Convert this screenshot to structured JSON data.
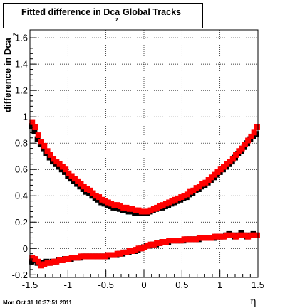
{
  "chart_data": {
    "type": "scatter",
    "title_main": "Fitted difference in Dca",
    "title_sub": "z",
    "title_tail": "Global Tracks",
    "ylabel_main": "difference in Dca",
    "ylabel_sub": "z",
    "xlabel": "η",
    "footer": "Mon Oct 31 10:37:51 2011",
    "xlim": [
      -1.5,
      1.5
    ],
    "ylim": [
      -0.22,
      1.66
    ],
    "grid": true,
    "x_ticks": [
      {
        "value": -1.5,
        "label": "-1.5"
      },
      {
        "value": -1.0,
        "label": "-1"
      },
      {
        "value": -0.5,
        "label": "-0.5"
      },
      {
        "value": 0.0,
        "label": "0"
      },
      {
        "value": 0.5,
        "label": "0.5"
      },
      {
        "value": 1.0,
        "label": "1"
      },
      {
        "value": 1.5,
        "label": "1.5"
      }
    ],
    "y_ticks": [
      {
        "value": -0.2,
        "label": "-0.2"
      },
      {
        "value": 0.0,
        "label": "0"
      },
      {
        "value": 0.2,
        "label": "0.2"
      },
      {
        "value": 0.4,
        "label": "0.4"
      },
      {
        "value": 0.6,
        "label": "0.6"
      },
      {
        "value": 0.8,
        "label": "0.8"
      },
      {
        "value": 1.0,
        "label": "1"
      },
      {
        "value": 1.2,
        "label": "1.2"
      },
      {
        "value": 1.4,
        "label": "1.4"
      },
      {
        "value": 1.6,
        "label": "1.6"
      }
    ],
    "series": [
      {
        "color": "#000000",
        "curves": [
          {
            "x": [
              -1.48,
              -1.44,
              -1.4,
              -1.36,
              -1.32,
              -1.28,
              -1.24,
              -1.2,
              -1.16,
              -1.12,
              -1.08,
              -1.04,
              -1.0,
              -0.96,
              -0.92,
              -0.88,
              -0.84,
              -0.8,
              -0.76,
              -0.72,
              -0.68,
              -0.64,
              -0.6,
              -0.56,
              -0.52,
              -0.48,
              -0.44,
              -0.4,
              -0.36,
              -0.32,
              -0.28,
              -0.24,
              -0.2,
              -0.16,
              -0.12,
              -0.08,
              -0.04,
              0.0,
              0.04,
              0.08,
              0.12,
              0.16,
              0.2,
              0.24,
              0.28,
              0.32,
              0.36,
              0.4,
              0.44,
              0.48,
              0.52,
              0.56,
              0.6,
              0.64,
              0.68,
              0.72,
              0.76,
              0.8,
              0.84,
              0.88,
              0.92,
              0.96,
              1.0,
              1.04,
              1.08,
              1.12,
              1.16,
              1.2,
              1.24,
              1.28,
              1.32,
              1.36,
              1.4,
              1.44,
              1.48
            ],
            "y": [
              0.93,
              0.89,
              0.83,
              0.79,
              0.76,
              0.72,
              0.69,
              0.66,
              0.64,
              0.62,
              0.6,
              0.58,
              0.55,
              0.53,
              0.51,
              0.49,
              0.47,
              0.45,
              0.43,
              0.42,
              0.4,
              0.38,
              0.37,
              0.35,
              0.34,
              0.33,
              0.32,
              0.31,
              0.31,
              0.3,
              0.29,
              0.29,
              0.28,
              0.28,
              0.27,
              0.27,
              0.27,
              0.27,
              0.27,
              0.28,
              0.29,
              0.3,
              0.31,
              0.31,
              0.32,
              0.33,
              0.34,
              0.35,
              0.36,
              0.37,
              0.38,
              0.39,
              0.41,
              0.42,
              0.44,
              0.45,
              0.47,
              0.48,
              0.5,
              0.52,
              0.54,
              0.56,
              0.58,
              0.6,
              0.62,
              0.64,
              0.66,
              0.69,
              0.72,
              0.74,
              0.77,
              0.8,
              0.83,
              0.85,
              0.87
            ]
          },
          {
            "x": [
              -1.48,
              -1.44,
              -1.4,
              -1.36,
              -1.32,
              -1.28,
              -1.24,
              -1.2,
              -1.16,
              -1.12,
              -1.08,
              -1.04,
              -1.0,
              -0.96,
              -0.92,
              -0.88,
              -0.84,
              -0.8,
              -0.76,
              -0.72,
              -0.68,
              -0.64,
              -0.6,
              -0.56,
              -0.52,
              -0.48,
              -0.44,
              -0.4,
              -0.36,
              -0.32,
              -0.28,
              -0.24,
              -0.2,
              -0.16,
              -0.12,
              -0.08,
              -0.04,
              0.0,
              0.04,
              0.08,
              0.12,
              0.16,
              0.2,
              0.24,
              0.28,
              0.32,
              0.36,
              0.4,
              0.44,
              0.48,
              0.52,
              0.56,
              0.6,
              0.64,
              0.68,
              0.72,
              0.76,
              0.8,
              0.84,
              0.88,
              0.92,
              0.96,
              1.0,
              1.04,
              1.08,
              1.12,
              1.16,
              1.2,
              1.24,
              1.28,
              1.32,
              1.36,
              1.4,
              1.44,
              1.48
            ],
            "y": [
              -0.1,
              -0.09,
              -0.11,
              -0.12,
              -0.11,
              -0.1,
              -0.11,
              -0.1,
              -0.1,
              -0.09,
              -0.09,
              -0.08,
              -0.08,
              -0.08,
              -0.07,
              -0.07,
              -0.07,
              -0.06,
              -0.06,
              -0.06,
              -0.06,
              -0.06,
              -0.06,
              -0.06,
              -0.06,
              -0.06,
              -0.05,
              -0.05,
              -0.05,
              -0.04,
              -0.04,
              -0.03,
              -0.03,
              -0.02,
              -0.02,
              -0.01,
              0.0,
              0.01,
              0.02,
              0.02,
              0.03,
              0.03,
              0.04,
              0.05,
              0.05,
              0.05,
              0.06,
              0.06,
              0.06,
              0.06,
              0.06,
              0.07,
              0.07,
              0.07,
              0.07,
              0.07,
              0.08,
              0.08,
              0.08,
              0.08,
              0.08,
              0.09,
              0.09,
              0.09,
              0.1,
              0.11,
              0.1,
              0.09,
              0.1,
              0.12,
              0.1,
              0.09,
              0.1,
              0.11,
              0.1
            ]
          }
        ]
      },
      {
        "color": "#ff0000",
        "curves": [
          {
            "x": [
              -1.47,
              -1.43,
              -1.39,
              -1.35,
              -1.31,
              -1.27,
              -1.23,
              -1.19,
              -1.15,
              -1.11,
              -1.07,
              -1.03,
              -0.99,
              -0.95,
              -0.91,
              -0.87,
              -0.83,
              -0.79,
              -0.75,
              -0.71,
              -0.67,
              -0.63,
              -0.59,
              -0.55,
              -0.51,
              -0.47,
              -0.43,
              -0.39,
              -0.35,
              -0.31,
              -0.27,
              -0.23,
              -0.19,
              -0.15,
              -0.11,
              -0.07,
              -0.03,
              0.01,
              0.05,
              0.09,
              0.13,
              0.17,
              0.21,
              0.25,
              0.29,
              0.33,
              0.37,
              0.41,
              0.45,
              0.49,
              0.53,
              0.57,
              0.61,
              0.65,
              0.69,
              0.73,
              0.77,
              0.81,
              0.85,
              0.89,
              0.93,
              0.97,
              1.01,
              1.05,
              1.09,
              1.13,
              1.17,
              1.21,
              1.25,
              1.29,
              1.33,
              1.37,
              1.41,
              1.45,
              1.49
            ],
            "y": [
              0.96,
              0.92,
              0.86,
              0.81,
              0.78,
              0.74,
              0.71,
              0.68,
              0.66,
              0.64,
              0.62,
              0.6,
              0.57,
              0.55,
              0.53,
              0.51,
              0.49,
              0.47,
              0.45,
              0.44,
              0.42,
              0.4,
              0.39,
              0.37,
              0.36,
              0.35,
              0.34,
              0.33,
              0.33,
              0.32,
              0.31,
              0.31,
              0.3,
              0.3,
              0.29,
              0.29,
              0.28,
              0.28,
              0.28,
              0.29,
              0.3,
              0.31,
              0.32,
              0.33,
              0.34,
              0.35,
              0.36,
              0.37,
              0.38,
              0.39,
              0.4,
              0.41,
              0.43,
              0.44,
              0.46,
              0.47,
              0.49,
              0.5,
              0.52,
              0.54,
              0.56,
              0.58,
              0.6,
              0.62,
              0.64,
              0.66,
              0.68,
              0.71,
              0.74,
              0.76,
              0.79,
              0.82,
              0.85,
              0.88,
              0.92
            ]
          },
          {
            "x": [
              -1.47,
              -1.43,
              -1.39,
              -1.35,
              -1.31,
              -1.27,
              -1.23,
              -1.19,
              -1.15,
              -1.11,
              -1.07,
              -1.03,
              -0.99,
              -0.95,
              -0.91,
              -0.87,
              -0.83,
              -0.79,
              -0.75,
              -0.71,
              -0.67,
              -0.63,
              -0.59,
              -0.55,
              -0.51,
              -0.47,
              -0.43,
              -0.39,
              -0.35,
              -0.31,
              -0.27,
              -0.23,
              -0.19,
              -0.15,
              -0.11,
              -0.07,
              -0.03,
              0.01,
              0.05,
              0.09,
              0.13,
              0.17,
              0.21,
              0.25,
              0.29,
              0.33,
              0.37,
              0.41,
              0.45,
              0.49,
              0.53,
              0.57,
              0.61,
              0.65,
              0.69,
              0.73,
              0.77,
              0.81,
              0.85,
              0.89,
              0.93,
              0.97,
              1.01,
              1.05,
              1.09,
              1.13,
              1.17,
              1.21,
              1.25,
              1.29,
              1.33,
              1.37,
              1.41,
              1.45,
              1.49
            ],
            "y": [
              -0.07,
              -0.08,
              -0.1,
              -0.13,
              -0.12,
              -0.11,
              -0.11,
              -0.1,
              -0.1,
              -0.09,
              -0.09,
              -0.08,
              -0.08,
              -0.07,
              -0.07,
              -0.07,
              -0.06,
              -0.06,
              -0.06,
              -0.06,
              -0.06,
              -0.06,
              -0.06,
              -0.06,
              -0.06,
              -0.05,
              -0.05,
              -0.05,
              -0.04,
              -0.04,
              -0.03,
              -0.03,
              -0.02,
              -0.02,
              -0.01,
              0.0,
              0.0,
              0.01,
              0.02,
              0.03,
              0.03,
              0.04,
              0.04,
              0.05,
              0.05,
              0.06,
              0.06,
              0.06,
              0.06,
              0.06,
              0.07,
              0.07,
              0.07,
              0.07,
              0.07,
              0.08,
              0.08,
              0.08,
              0.08,
              0.08,
              0.09,
              0.09,
              0.09,
              0.09,
              0.1,
              0.1,
              0.1,
              0.09,
              0.1,
              0.1,
              0.1,
              0.09,
              0.1,
              0.1,
              0.1
            ]
          }
        ]
      }
    ]
  }
}
